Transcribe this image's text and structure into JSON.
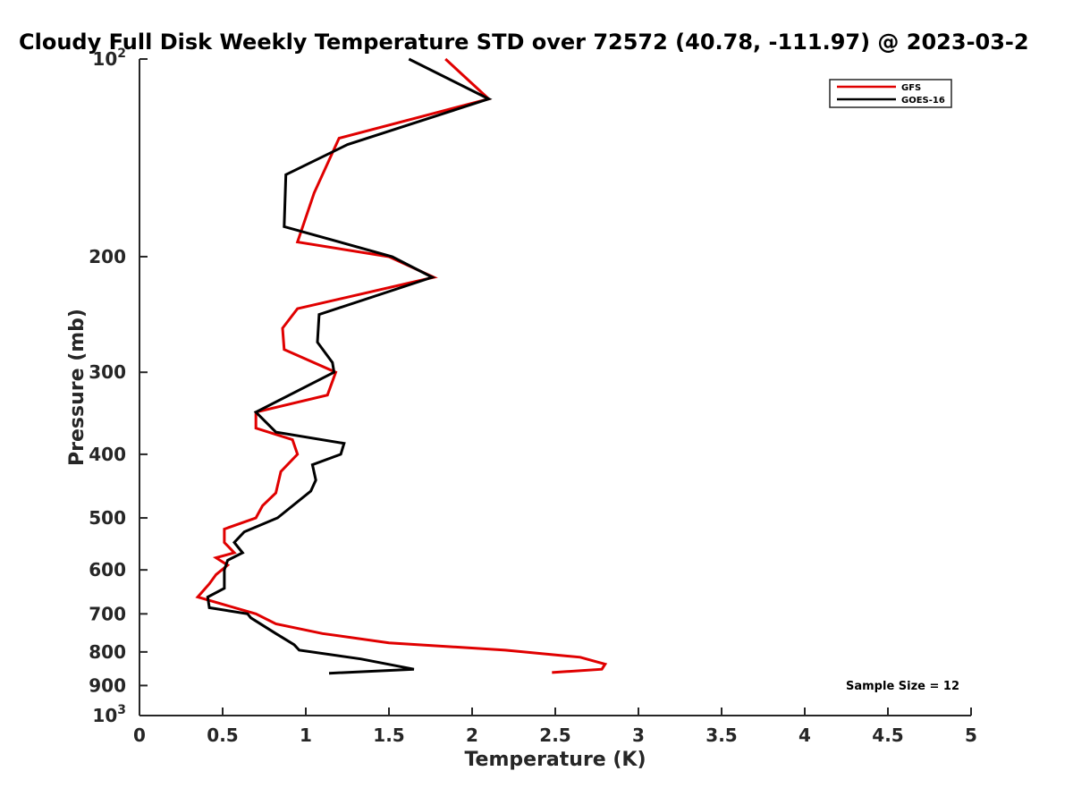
{
  "chart_data": {
    "type": "line",
    "title": "Cloudy Full Disk Weekly Temperature STD over 72572 (40.78, -111.97) @ 2023-03-2",
    "xlabel": "Temperature (K)",
    "ylabel": "Pressure (mb)",
    "xlim": [
      0,
      5
    ],
    "ylim": [
      1000,
      100
    ],
    "yscale": "log",
    "y_reversed": true,
    "x_ticks": [
      "0",
      "0.5",
      "1",
      "1.5",
      "2",
      "2.5",
      "3",
      "3.5",
      "4",
      "4.5",
      "5"
    ],
    "x_tick_values": [
      0,
      0.5,
      1,
      1.5,
      2,
      2.5,
      3,
      3.5,
      4,
      4.5,
      5
    ],
    "y_tick_values": [
      100,
      200,
      300,
      400,
      500,
      600,
      700,
      800,
      900,
      1000
    ],
    "y_ticks": [
      {
        "base": "10",
        "exp": "2"
      },
      {
        "base": "200",
        "exp": ""
      },
      {
        "base": "300",
        "exp": ""
      },
      {
        "base": "400",
        "exp": ""
      },
      {
        "base": "500",
        "exp": ""
      },
      {
        "base": "600",
        "exp": ""
      },
      {
        "base": "700",
        "exp": ""
      },
      {
        "base": "800",
        "exp": ""
      },
      {
        "base": "900",
        "exp": ""
      },
      {
        "base": "10",
        "exp": "3"
      }
    ],
    "grid": false,
    "legend_position": "top-right",
    "annotation": "Sample Size = 12",
    "series": [
      {
        "name": "GFS",
        "color": "#e00000",
        "x": [
          1.84,
          2.1,
          1.2,
          1.05,
          0.95,
          1.5,
          1.77,
          0.95,
          0.86,
          0.87,
          1.18,
          1.13,
          0.7,
          0.7,
          0.92,
          0.95,
          0.85,
          0.82,
          0.74,
          0.7,
          0.51,
          0.51,
          0.57,
          0.46,
          0.53,
          0.46,
          0.42,
          0.35,
          0.7,
          0.82,
          1.1,
          1.5,
          2.2,
          2.65,
          2.8,
          2.78,
          2.48
        ],
        "y": [
          100,
          115,
          132,
          160,
          190,
          200,
          215,
          240,
          257,
          277,
          300,
          325,
          345,
          365,
          380,
          400,
          425,
          458,
          479,
          500,
          520,
          545,
          565,
          575,
          590,
          610,
          630,
          660,
          700,
          725,
          750,
          775,
          795,
          815,
          835,
          850,
          860
        ]
      },
      {
        "name": "GOES-16",
        "color": "#000000",
        "x": [
          1.62,
          2.1,
          1.25,
          0.88,
          0.87,
          1.52,
          1.76,
          1.08,
          1.07,
          1.16,
          1.17,
          0.7,
          0.82,
          1.23,
          1.21,
          1.04,
          1.06,
          1.03,
          0.83,
          0.63,
          0.57,
          0.62,
          0.53,
          0.51,
          0.51,
          0.41,
          0.42,
          0.65,
          0.67,
          0.82,
          0.93,
          0.96,
          1.33,
          1.65,
          1.14
        ],
        "y": [
          100,
          115,
          135,
          150,
          180,
          200,
          215,
          245,
          270,
          290,
          300,
          345,
          370,
          385,
          400,
          415,
          438,
          455,
          500,
          525,
          545,
          565,
          580,
          600,
          640,
          660,
          685,
          700,
          710,
          750,
          780,
          795,
          820,
          850,
          862
        ]
      }
    ]
  }
}
